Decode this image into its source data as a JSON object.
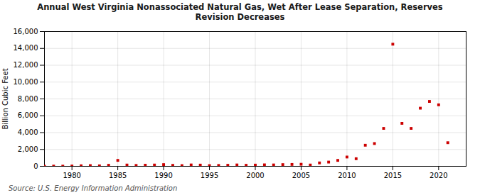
{
  "chart_data": {
    "type": "scatter",
    "title": "Annual West Virginia Nonassociated Natural Gas, Wet After Lease Separation, Reserves\nRevision Decreases",
    "ylabel": "Billion Cubic Feet",
    "source": "Source: U.S. Energy Information Administration",
    "x": [
      1977,
      1978,
      1979,
      1980,
      1981,
      1982,
      1983,
      1984,
      1985,
      1986,
      1987,
      1988,
      1989,
      1990,
      1991,
      1992,
      1993,
      1994,
      1995,
      1996,
      1997,
      1998,
      1999,
      2000,
      2001,
      2002,
      2003,
      2004,
      2005,
      2006,
      2007,
      2008,
      2009,
      2010,
      2011,
      2012,
      2013,
      2014,
      2015,
      2016,
      2017,
      2018,
      2019,
      2020,
      2021
    ],
    "values": [
      5,
      20,
      15,
      30,
      60,
      80,
      50,
      120,
      700,
      150,
      100,
      130,
      150,
      200,
      110,
      80,
      160,
      140,
      80,
      100,
      120,
      160,
      120,
      140,
      170,
      160,
      200,
      220,
      240,
      150,
      400,
      500,
      700,
      1100,
      900,
      2500,
      2700,
      4500,
      14500,
      5100,
      4500,
      6900,
      7700,
      7300,
      2800
    ],
    "color": "#cc0000",
    "marker": "square",
    "xlim": [
      1977,
      2023
    ],
    "ylim": [
      0,
      16000
    ],
    "xticks": [
      1980,
      1985,
      1990,
      1995,
      2000,
      2005,
      2010,
      2015,
      2020
    ],
    "yticks": [
      0,
      {
        "value": 2000,
        "label": "2,000"
      },
      {
        "value": 4000,
        "label": "4,000"
      },
      {
        "value": 6000,
        "label": "6,000"
      },
      {
        "value": 8000,
        "label": "8,000"
      },
      {
        "value": 10000,
        "label": "10,000"
      },
      {
        "value": 12000,
        "label": "12,000"
      },
      {
        "value": 14000,
        "label": "14,000"
      },
      {
        "value": 16000,
        "label": "16,000"
      }
    ],
    "grid": true
  }
}
